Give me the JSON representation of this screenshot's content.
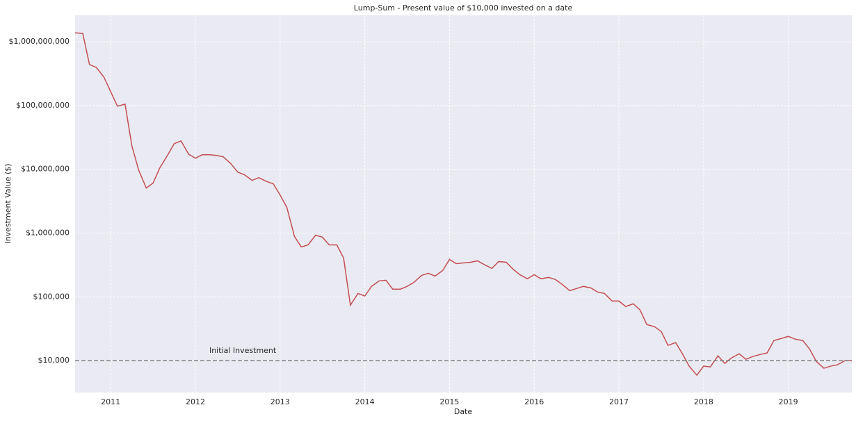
{
  "chart_data": {
    "type": "line",
    "title": "Lump-Sum - Present value of $10,000 invested on a date",
    "x_label": "Date",
    "y_label": "Investment Value ($)",
    "color": "#c44e52",
    "ylog": true,
    "grid": true,
    "xlim": [
      2010.58,
      2019.75
    ],
    "ylim": [
      3162,
      2600000000
    ],
    "xticks": [
      2011,
      2012,
      2013,
      2014,
      2015,
      2016,
      2017,
      2018,
      2019
    ],
    "yticks": [
      {
        "value": 10000,
        "label": "$10,000"
      },
      {
        "value": 100000,
        "label": "$100,000"
      },
      {
        "value": 1000000,
        "label": "$1,000,000"
      },
      {
        "value": 10000000,
        "label": "$10,000,000"
      },
      {
        "value": 100000000,
        "label": "$100,000,000"
      },
      {
        "value": 1000000000,
        "label": "$1,000,000,000"
      }
    ],
    "reference_line": {
      "y": 10000,
      "label": "Initial Investment",
      "color": "#808080"
    },
    "x": [
      2010.58,
      2010.67,
      2010.75,
      2010.83,
      2010.92,
      2011,
      2011.08,
      2011.17,
      2011.25,
      2011.33,
      2011.42,
      2011.5,
      2011.58,
      2011.67,
      2011.75,
      2011.83,
      2011.92,
      2012,
      2012.08,
      2012.17,
      2012.25,
      2012.33,
      2012.42,
      2012.5,
      2012.58,
      2012.67,
      2012.75,
      2012.83,
      2012.92,
      2013,
      2013.08,
      2013.17,
      2013.25,
      2013.33,
      2013.42,
      2013.5,
      2013.58,
      2013.67,
      2013.75,
      2013.83,
      2013.92,
      2014,
      2014.08,
      2014.17,
      2014.25,
      2014.33,
      2014.42,
      2014.5,
      2014.58,
      2014.67,
      2014.75,
      2014.83,
      2014.92,
      2015,
      2015.08,
      2015.17,
      2015.25,
      2015.33,
      2015.42,
      2015.5,
      2015.58,
      2015.67,
      2015.75,
      2015.83,
      2015.92,
      2016,
      2016.08,
      2016.17,
      2016.25,
      2016.33,
      2016.42,
      2016.5,
      2016.58,
      2016.67,
      2016.75,
      2016.83,
      2016.92,
      2017,
      2017.08,
      2017.17,
      2017.25,
      2017.33,
      2017.42,
      2017.5,
      2017.58,
      2017.67,
      2017.75,
      2017.83,
      2017.92,
      2018,
      2018.08,
      2018.17,
      2018.25,
      2018.33,
      2018.42,
      2018.5,
      2018.58,
      2018.67,
      2018.75,
      2018.83,
      2018.92,
      2019,
      2019.08,
      2019.17,
      2019.25,
      2019.33,
      2019.42,
      2019.5,
      2019.58,
      2019.67,
      2019.75
    ],
    "values": [
      1380000000,
      1350000000,
      438000000,
      396000000,
      279000000,
      165000000,
      97500000,
      105000000,
      23400000,
      9750000,
      5090000,
      6060000,
      10500000,
      16500000,
      25200000,
      27900000,
      17300000,
      14900000,
      16900000,
      16900000,
      16500000,
      15700000,
      12200000,
      9050000,
      8190000,
      6700000,
      7410000,
      6530000,
      5910000,
      3960000,
      2520000,
      883000,
      606000,
      653000,
      927000,
      861000,
      653000,
      653000,
      406000,
      74100,
      113000,
      103000,
      146000,
      178000,
      182000,
      132000,
      132000,
      146000,
      169000,
      217000,
      234000,
      212000,
      259000,
      386000,
      332000,
      341000,
      349000,
      367000,
      316000,
      279000,
      358000,
      349000,
      272000,
      223000,
      192000,
      223000,
      192000,
      202000,
      187000,
      157000,
      125000,
      135000,
      146000,
      138000,
      119000,
      113000,
      86100,
      86100,
      70500,
      77900,
      62200,
      36700,
      34100,
      28600,
      17300,
      19200,
      12800,
      8190,
      5910,
      8190,
      7980,
      11900,
      9050,
      11050,
      12800,
      10500,
      11600,
      12500,
      13200,
      20700,
      22300,
      24000,
      21700,
      20700,
      15300,
      9750,
      7590,
      8190,
      8610,
      10000,
      10000
    ]
  }
}
